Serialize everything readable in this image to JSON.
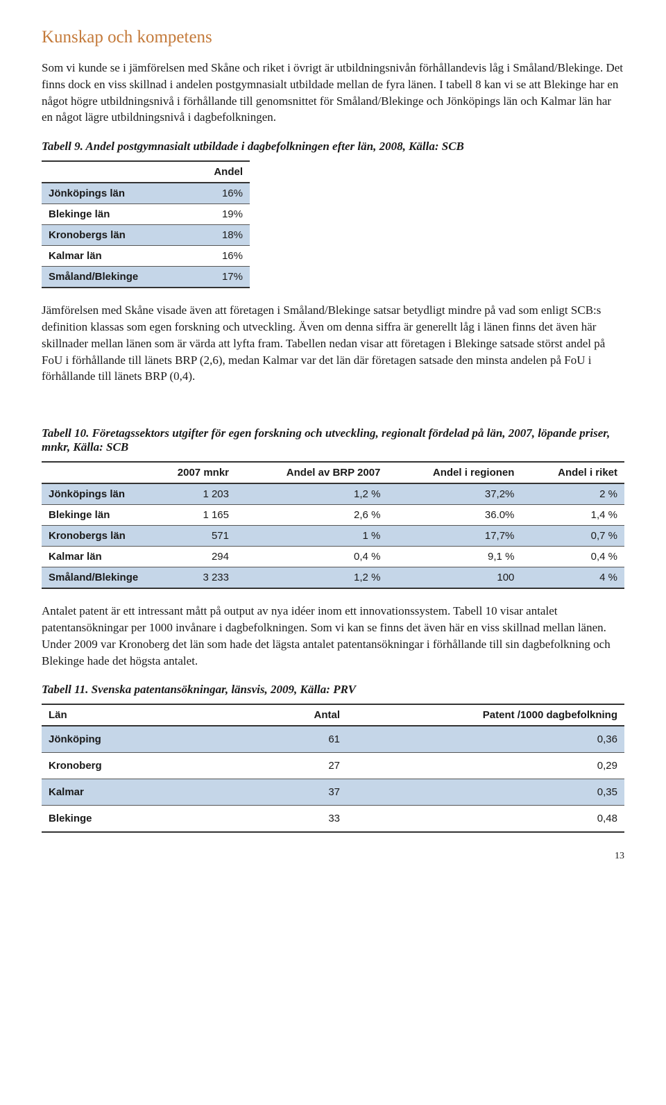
{
  "colors": {
    "section_title": "#c47a3a",
    "row_shade": "#c5d6e8",
    "text": "#1a1a1a",
    "border": "#333333",
    "background": "#ffffff"
  },
  "typography": {
    "body_font": "Georgia",
    "table_font": "Arial",
    "section_title_size_pt": 19,
    "body_size_pt": 13,
    "table_size_pt": 11
  },
  "section_title": "Kunskap och kompetens",
  "para1": "Som vi kunde se i jämförelsen med Skåne och riket i övrigt är utbildningsnivån förhållandevis låg i Småland/Blekinge. Det finns dock en viss skillnad i andelen postgymnasialt utbildade mellan de fyra länen. I tabell 8 kan vi se att Blekinge har en något högre utbildningsnivå i förhållande till genomsnittet för Småland/Blekinge och Jönköpings län och Kalmar län har en något lägre utbildningsnivå i dagbefolkningen.",
  "table9": {
    "caption": "Tabell 9. Andel postgymnasialt utbildade i dagbefolkningen efter län, 2008, Källa: SCB",
    "header_col1": "",
    "header_col2": "Andel",
    "rows": [
      {
        "label": "Jönköpings län",
        "value": "16%",
        "shaded": true
      },
      {
        "label": "Blekinge län",
        "value": "19%",
        "shaded": false
      },
      {
        "label": "Kronobergs län",
        "value": "18%",
        "shaded": true
      },
      {
        "label": "Kalmar län",
        "value": "16%",
        "shaded": false
      },
      {
        "label": "Småland/Blekinge",
        "value": "17%",
        "shaded": true
      }
    ]
  },
  "para2": "Jämförelsen med Skåne visade även att företagen i Småland/Blekinge satsar betydligt mindre på vad som enligt SCB:s definition klassas som egen forskning och utveckling. Även om denna siffra är generellt låg i länen finns det även här skillnader mellan länen som är värda att lyfta fram. Tabellen nedan visar att företagen i Blekinge satsade störst andel på FoU i förhållande till länets BRP (2,6), medan Kalmar var det län där företagen satsade den minsta andelen på FoU i förhållande till länets BRP (0,4).",
  "table10": {
    "caption": "Tabell 10. Företagssektors utgifter för egen forskning och utveckling, regionalt fördelad på län, 2007, löpande priser, mnkr, Källa: SCB",
    "headers": [
      "",
      "2007 mnkr",
      "Andel av BRP 2007",
      "Andel i regionen",
      "Andel i riket"
    ],
    "rows": [
      {
        "cells": [
          "Jönköpings län",
          "1 203",
          "1,2 %",
          "37,2%",
          "2 %"
        ],
        "shaded": true
      },
      {
        "cells": [
          "Blekinge län",
          "1 165",
          "2,6 %",
          "36.0%",
          "1,4 %"
        ],
        "shaded": false
      },
      {
        "cells": [
          "Kronobergs län",
          "571",
          "1 %",
          "17,7%",
          "0,7 %"
        ],
        "shaded": true
      },
      {
        "cells": [
          "Kalmar län",
          "294",
          "0,4 %",
          "9,1 %",
          "0,4 %"
        ],
        "shaded": false
      },
      {
        "cells": [
          "Småland/Blekinge",
          "3 233",
          "1,2 %",
          "100",
          "4 %"
        ],
        "shaded": true
      }
    ]
  },
  "para3": "Antalet patent är ett intressant mått på output av nya idéer inom ett innovationssystem. Tabell 10 visar antalet patentansökningar per 1000 invånare i dagbefolkningen. Som vi kan se finns det även här en viss skillnad mellan länen. Under 2009 var Kronoberg det län som hade det lägsta antalet patentansökningar i förhållande till sin dagbefolkning och Blekinge hade det högsta antalet.",
  "table11": {
    "caption": "Tabell 11.  Svenska patentansökningar, länsvis, 2009, Källa: PRV",
    "headers": [
      "Län",
      "Antal",
      "Patent /1000 dagbefolkning"
    ],
    "rows": [
      {
        "cells": [
          "Jönköping",
          "61",
          "0,36"
        ],
        "shaded": true
      },
      {
        "cells": [
          "Kronoberg",
          "27",
          "0,29"
        ],
        "shaded": false
      },
      {
        "cells": [
          "Kalmar",
          "37",
          "0,35"
        ],
        "shaded": true
      },
      {
        "cells": [
          "Blekinge",
          "33",
          "0,48"
        ],
        "shaded": false
      }
    ]
  },
  "page_number": "13"
}
